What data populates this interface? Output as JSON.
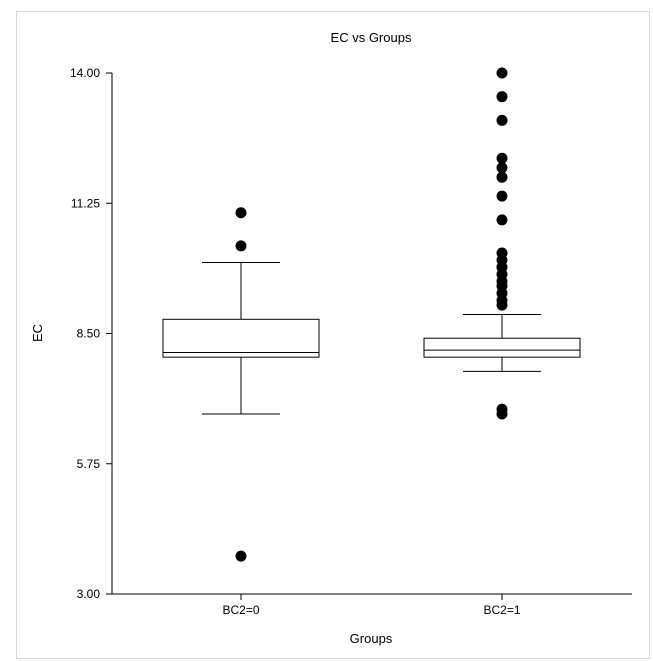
{
  "chart_data": {
    "type": "box",
    "title": "EC vs Groups",
    "xlabel": "Groups",
    "ylabel": "EC",
    "ylim": [
      3.0,
      14.0
    ],
    "yticks": [
      "3.00",
      "5.75",
      "8.50",
      "11.25",
      "14.00"
    ],
    "categories": [
      "BC2=0",
      "BC2=1"
    ],
    "boxes": [
      {
        "category": "BC2=0",
        "whisker_low": 6.8,
        "q1": 8.0,
        "median": 8.1,
        "q3": 8.8,
        "whisker_high": 10.0,
        "outliers": [
          11.05,
          10.35,
          3.8
        ]
      },
      {
        "category": "BC2=1",
        "whisker_low": 7.7,
        "q1": 8.0,
        "median": 8.15,
        "q3": 8.4,
        "whisker_high": 8.9,
        "outliers": [
          14.0,
          13.5,
          13.0,
          12.2,
          12.0,
          11.8,
          11.4,
          10.9,
          10.2,
          10.05,
          9.9,
          9.75,
          9.6,
          9.5,
          9.35,
          9.2,
          9.1,
          6.9,
          6.8
        ]
      }
    ],
    "grid": false,
    "legend": "none"
  }
}
